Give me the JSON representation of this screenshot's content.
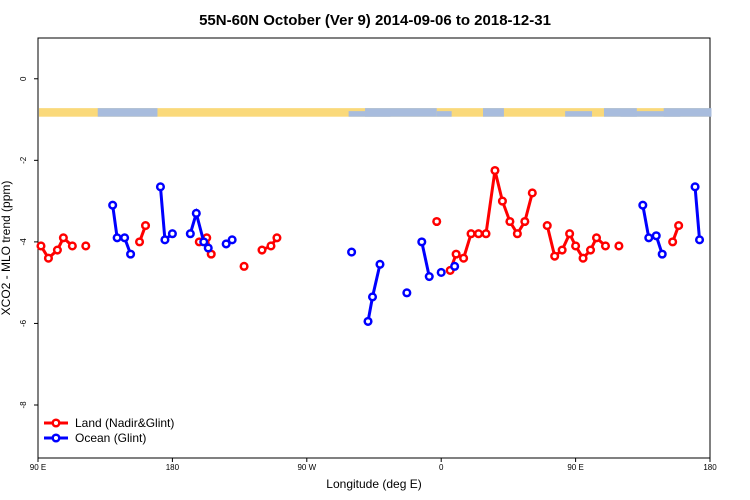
{
  "chart_data": {
    "type": "line",
    "title": "55N-60N October (Ver 9)   2014-09-06 to 2018-12-31",
    "xlabel": "Longitude (deg E)",
    "ylabel": "XCO2 - MLO trend (ppm)",
    "xlim": [
      90,
      540
    ],
    "ylim": [
      -9.3,
      1.0
    ],
    "xticks": [
      {
        "value": 90,
        "label": "90 E"
      },
      {
        "value": 180,
        "label": "180"
      },
      {
        "value": 270,
        "label": "90 W"
      },
      {
        "value": 360,
        "label": "0"
      },
      {
        "value": 450,
        "label": "90 E"
      },
      {
        "value": 540,
        "label": "180"
      }
    ],
    "yticks": [
      {
        "value": 0,
        "label": "0"
      },
      {
        "value": -2,
        "label": "-2"
      },
      {
        "value": -4,
        "label": "-4"
      },
      {
        "value": -6,
        "label": "-6"
      },
      {
        "value": -8,
        "label": "-8"
      }
    ],
    "legend_position": "bottom-left",
    "landmask_band": {
      "y_from": -0.72,
      "y_to": -0.93,
      "land_color": "#FAD97A",
      "ocean_color": "#A8BCDD"
    },
    "series": [
      {
        "name": "Land (Nadir&Glint)",
        "color": "#FF0000",
        "segments": [
          [
            [
              92,
              -4.1
            ],
            [
              97,
              -4.4
            ],
            [
              103,
              -4.2
            ],
            [
              107,
              -3.9
            ],
            [
              113,
              -4.1
            ]
          ],
          [
            [
              122,
              -4.1
            ]
          ],
          [
            [
              158,
              -4.0
            ],
            [
              162,
              -3.6
            ]
          ],
          [
            [
              198,
              -4.0
            ],
            [
              203,
              -3.9
            ],
            [
              206,
              -4.3
            ]
          ],
          [
            [
              228,
              -4.6
            ]
          ],
          [
            [
              240,
              -4.2
            ],
            [
              246,
              -4.1
            ],
            [
              250,
              -3.9
            ]
          ],
          [
            [
              357,
              -3.5
            ]
          ],
          [
            [
              366,
              -4.7
            ],
            [
              370,
              -4.3
            ],
            [
              375,
              -4.4
            ],
            [
              380,
              -3.8
            ],
            [
              385,
              -3.8
            ],
            [
              390,
              -3.8
            ],
            [
              396,
              -2.25
            ],
            [
              401,
              -3.0
            ],
            [
              406,
              -3.5
            ],
            [
              411,
              -3.8
            ],
            [
              416,
              -3.5
            ],
            [
              421,
              -2.8
            ]
          ],
          [
            [
              431,
              -3.6
            ],
            [
              436,
              -4.35
            ],
            [
              441,
              -4.2
            ],
            [
              446,
              -3.8
            ],
            [
              450,
              -4.1
            ],
            [
              455,
              -4.4
            ],
            [
              460,
              -4.2
            ],
            [
              464,
              -3.9
            ],
            [
              470,
              -4.1
            ]
          ],
          [
            [
              479,
              -4.1
            ]
          ],
          [
            [
              515,
              -4.0
            ],
            [
              519,
              -3.6
            ]
          ]
        ]
      },
      {
        "name": "Ocean (Glint)",
        "color": "#0000FF",
        "segments": [
          [
            [
              140,
              -3.1
            ],
            [
              143,
              -3.9
            ],
            [
              148,
              -3.9
            ],
            [
              152,
              -4.3
            ]
          ],
          [
            [
              172,
              -2.65
            ],
            [
              175,
              -3.95
            ],
            [
              180,
              -3.8
            ]
          ],
          [
            [
              192,
              -3.8
            ],
            [
              196,
              -3.3
            ],
            [
              201,
              -4.0
            ],
            [
              204,
              -4.15
            ]
          ],
          [
            [
              216,
              -4.05
            ],
            [
              220,
              -3.95
            ]
          ],
          [
            [
              300,
              -4.25
            ]
          ],
          [
            [
              311,
              -5.95
            ],
            [
              314,
              -5.35
            ],
            [
              319,
              -4.55
            ]
          ],
          [
            [
              337,
              -5.25
            ]
          ],
          [
            [
              347,
              -4.0
            ],
            [
              352,
              -4.85
            ]
          ],
          [
            [
              360,
              -4.75
            ]
          ],
          [
            [
              369,
              -4.6
            ]
          ],
          [
            [
              495,
              -3.1
            ],
            [
              499,
              -3.9
            ],
            [
              504,
              -3.85
            ],
            [
              508,
              -4.3
            ]
          ],
          [
            [
              530,
              -2.65
            ],
            [
              533,
              -3.95
            ]
          ]
        ]
      }
    ]
  }
}
